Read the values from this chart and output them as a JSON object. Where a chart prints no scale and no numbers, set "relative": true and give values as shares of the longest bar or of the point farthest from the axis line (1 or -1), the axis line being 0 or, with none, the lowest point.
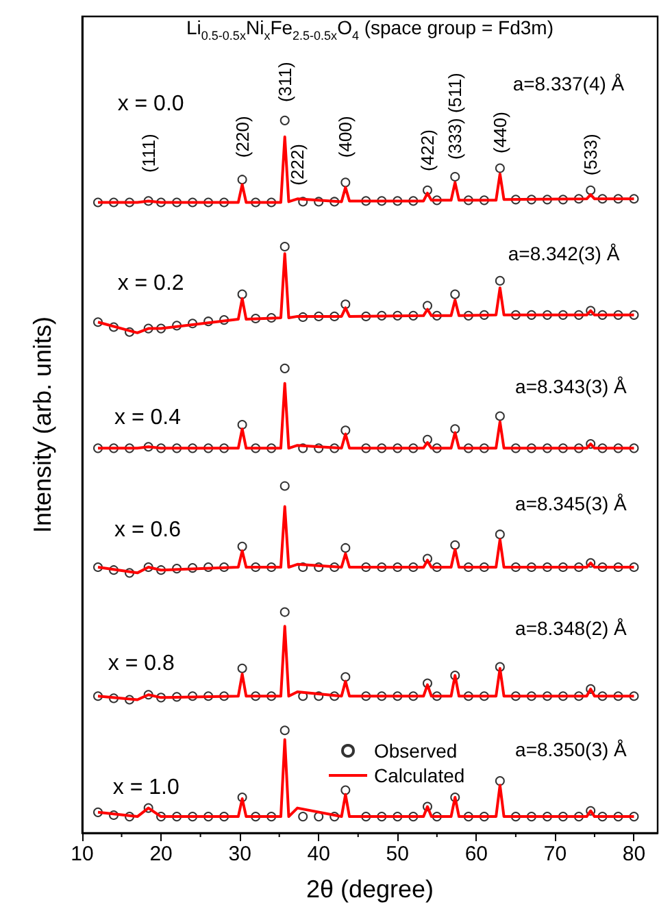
{
  "chart_data": {
    "type": "line",
    "relative": true,
    "title": "Li$_{0.5-0.5x}$Ni$_{x}$Fe$_{2.5-0.5x}$O$_{4}$ (space group = Fd3m)",
    "xlabel": "2θ (degree)",
    "ylabel": "Intensity (arb. units)",
    "xlim": [
      10,
      83
    ],
    "xticks": [
      10,
      20,
      30,
      40,
      50,
      60,
      70,
      80
    ],
    "legend": "bottom",
    "grid": false,
    "series": [
      {
        "type": "scatter",
        "marker": "circle",
        "color": "#000000",
        "x": [
          12,
          14,
          16,
          18.4,
          20,
          22,
          24,
          26,
          28,
          30.3,
          32,
          34,
          35.7,
          38,
          40,
          42,
          43.4,
          46,
          48,
          50,
          52,
          53.8,
          55,
          57.3,
          59,
          61,
          63.0,
          65,
          67,
          69,
          71,
          73,
          74.5,
          76,
          78,
          80
        ],
        "values": [
          0.885,
          0.885,
          0.885,
          0.887,
          0.885,
          0.885,
          0.885,
          0.885,
          0.885,
          0.917,
          0.885,
          0.885,
          1.0,
          0.886,
          0.886,
          0.886,
          0.913,
          0.887,
          0.887,
          0.887,
          0.887,
          0.902,
          0.888,
          0.921,
          0.888,
          0.888,
          0.933,
          0.889,
          0.889,
          0.889,
          0.889,
          0.89,
          0.902,
          0.89,
          0.89,
          0.89
        ]
      },
      {
        "type": "line",
        "marker": "none",
        "color": "#ff0000",
        "x": [
          12,
          17,
          18.4,
          20,
          29.8,
          30.3,
          30.8,
          35.2,
          35.7,
          36.2,
          37.3,
          42.9,
          43.4,
          43.9,
          53.3,
          53.8,
          54.3,
          56.8,
          57.3,
          57.8,
          62.5,
          63.0,
          63.5,
          74.0,
          74.5,
          75.0,
          80
        ],
        "values": [
          0.885,
          0.885,
          0.887,
          0.885,
          0.885,
          0.91,
          0.885,
          0.885,
          0.977,
          0.886,
          0.89,
          0.886,
          0.906,
          0.887,
          0.887,
          0.898,
          0.888,
          0.888,
          0.913,
          0.888,
          0.888,
          0.925,
          0.889,
          0.89,
          0.896,
          0.89,
          0.89
        ]
      },
      {
        "type": "scatter",
        "marker": "circle",
        "color": "#000000",
        "x": [
          12,
          14,
          16,
          18.4,
          20,
          22,
          24,
          26,
          28,
          30.3,
          32,
          34,
          35.7,
          38,
          40,
          42,
          43.4,
          46,
          48,
          50,
          52,
          53.8,
          55,
          57.3,
          59,
          61,
          63.0,
          65,
          67,
          69,
          71,
          73,
          74.5,
          76,
          78,
          80
        ],
        "values": [
          0.717,
          0.71,
          0.703,
          0.708,
          0.708,
          0.712,
          0.715,
          0.718,
          0.72,
          0.756,
          0.722,
          0.723,
          0.823,
          0.724,
          0.725,
          0.725,
          0.742,
          0.725,
          0.726,
          0.726,
          0.726,
          0.74,
          0.726,
          0.756,
          0.726,
          0.727,
          0.775,
          0.727,
          0.727,
          0.727,
          0.727,
          0.727,
          0.733,
          0.727,
          0.727,
          0.727
        ]
      },
      {
        "type": "line",
        "marker": "none",
        "color": "#ff0000",
        "x": [
          12,
          17,
          18.4,
          20,
          29.8,
          30.3,
          30.8,
          35.2,
          35.7,
          36.2,
          37.3,
          42.9,
          43.4,
          43.9,
          53.3,
          53.8,
          54.3,
          56.8,
          57.3,
          57.8,
          62.5,
          63.0,
          63.5,
          74.0,
          74.5,
          75.0,
          80
        ],
        "values": [
          0.717,
          0.702,
          0.708,
          0.708,
          0.721,
          0.75,
          0.721,
          0.723,
          0.813,
          0.723,
          0.725,
          0.725,
          0.737,
          0.725,
          0.726,
          0.735,
          0.726,
          0.726,
          0.748,
          0.726,
          0.727,
          0.765,
          0.727,
          0.727,
          0.733,
          0.727,
          0.727
        ]
      },
      {
        "type": "scatter",
        "marker": "circle",
        "color": "#000000",
        "x": [
          12,
          14,
          16,
          18.4,
          20,
          22,
          24,
          26,
          28,
          30.3,
          32,
          34,
          35.7,
          38,
          40,
          42,
          43.4,
          46,
          48,
          50,
          52,
          53.8,
          55,
          57.3,
          59,
          61,
          63.0,
          65,
          67,
          69,
          71,
          73,
          74.5,
          76,
          78,
          80
        ],
        "values": [
          0.54,
          0.54,
          0.54,
          0.542,
          0.54,
          0.54,
          0.54,
          0.54,
          0.54,
          0.573,
          0.54,
          0.54,
          0.652,
          0.54,
          0.54,
          0.54,
          0.565,
          0.54,
          0.54,
          0.54,
          0.54,
          0.552,
          0.54,
          0.567,
          0.54,
          0.54,
          0.585,
          0.54,
          0.54,
          0.54,
          0.54,
          0.54,
          0.546,
          0.54,
          0.54,
          0.54
        ]
      },
      {
        "type": "line",
        "marker": "none",
        "color": "#ff0000",
        "x": [
          12,
          17,
          18.4,
          20,
          29.8,
          30.3,
          30.8,
          35.2,
          35.7,
          36.2,
          37.3,
          42.9,
          43.4,
          43.9,
          53.3,
          53.8,
          54.3,
          56.8,
          57.3,
          57.8,
          62.5,
          63.0,
          63.5,
          74.0,
          74.5,
          75.0,
          80
        ],
        "values": [
          0.54,
          0.54,
          0.542,
          0.54,
          0.54,
          0.567,
          0.54,
          0.54,
          0.631,
          0.54,
          0.544,
          0.54,
          0.56,
          0.54,
          0.54,
          0.548,
          0.54,
          0.54,
          0.562,
          0.54,
          0.54,
          0.577,
          0.54,
          0.54,
          0.546,
          0.54,
          0.54
        ]
      },
      {
        "type": "scatter",
        "marker": "circle",
        "color": "#000000",
        "x": [
          12,
          14,
          16,
          18.4,
          20,
          22,
          24,
          26,
          28,
          30.3,
          32,
          34,
          35.7,
          38,
          40,
          42,
          43.4,
          46,
          48,
          50,
          52,
          53.8,
          55,
          57.3,
          59,
          61,
          63.0,
          65,
          67,
          69,
          71,
          73,
          74.5,
          76,
          78,
          80
        ],
        "values": [
          0.373,
          0.369,
          0.365,
          0.373,
          0.369,
          0.371,
          0.372,
          0.373,
          0.373,
          0.402,
          0.373,
          0.373,
          0.487,
          0.373,
          0.373,
          0.373,
          0.4,
          0.373,
          0.373,
          0.373,
          0.373,
          0.385,
          0.373,
          0.404,
          0.373,
          0.373,
          0.419,
          0.373,
          0.373,
          0.373,
          0.373,
          0.373,
          0.379,
          0.373,
          0.373,
          0.373
        ]
      },
      {
        "type": "line",
        "marker": "none",
        "color": "#ff0000",
        "x": [
          12,
          17,
          18.4,
          20,
          29.8,
          30.3,
          30.8,
          35.2,
          35.7,
          36.2,
          37.3,
          42.9,
          43.4,
          43.9,
          53.3,
          53.8,
          54.3,
          56.8,
          57.3,
          57.8,
          62.5,
          63.0,
          63.5,
          74.0,
          74.5,
          75.0,
          80
        ],
        "values": [
          0.373,
          0.365,
          0.373,
          0.369,
          0.373,
          0.396,
          0.373,
          0.373,
          0.458,
          0.373,
          0.377,
          0.373,
          0.392,
          0.373,
          0.373,
          0.383,
          0.373,
          0.373,
          0.398,
          0.373,
          0.373,
          0.412,
          0.373,
          0.373,
          0.379,
          0.373,
          0.373
        ]
      },
      {
        "type": "scatter",
        "marker": "circle",
        "color": "#000000",
        "x": [
          12,
          14,
          16,
          18.4,
          20,
          22,
          24,
          26,
          28,
          30.3,
          32,
          34,
          35.7,
          38,
          40,
          42,
          43.4,
          46,
          48,
          50,
          52,
          53.8,
          55,
          57.3,
          59,
          61,
          63.0,
          65,
          67,
          69,
          71,
          73,
          74.5,
          76,
          78,
          80
        ],
        "values": [
          0.192,
          0.189,
          0.187,
          0.194,
          0.19,
          0.191,
          0.192,
          0.192,
          0.192,
          0.231,
          0.192,
          0.192,
          0.31,
          0.192,
          0.192,
          0.192,
          0.219,
          0.192,
          0.192,
          0.192,
          0.192,
          0.21,
          0.192,
          0.221,
          0.192,
          0.192,
          0.233,
          0.192,
          0.192,
          0.192,
          0.192,
          0.192,
          0.202,
          0.192,
          0.192,
          0.192
        ]
      },
      {
        "type": "line",
        "marker": "none",
        "color": "#ff0000",
        "x": [
          12,
          17,
          18.4,
          20,
          29.8,
          30.3,
          30.8,
          35.2,
          35.7,
          36.2,
          37.3,
          42.9,
          43.4,
          43.9,
          53.3,
          53.8,
          54.3,
          56.8,
          57.3,
          57.8,
          62.5,
          63.0,
          63.5,
          74.0,
          74.5,
          75.0,
          80
        ],
        "values": [
          0.192,
          0.187,
          0.194,
          0.19,
          0.192,
          0.223,
          0.192,
          0.192,
          0.29,
          0.192,
          0.198,
          0.192,
          0.213,
          0.192,
          0.192,
          0.208,
          0.192,
          0.192,
          0.221,
          0.192,
          0.192,
          0.231,
          0.192,
          0.192,
          0.202,
          0.192,
          0.192
        ]
      },
      {
        "type": "scatter",
        "name": "Observed",
        "marker": "circle",
        "color": "#000000",
        "x": [
          12,
          14,
          16,
          18.4,
          20,
          22,
          24,
          26,
          28,
          30.3,
          32,
          34,
          35.7,
          38,
          40,
          42,
          43.4,
          46,
          48,
          50,
          52,
          53.8,
          55,
          57.3,
          59,
          61,
          63.0,
          65,
          67,
          69,
          71,
          73,
          74.5,
          76,
          78,
          80
        ],
        "values": [
          0.029,
          0.025,
          0.023,
          0.035,
          0.023,
          0.023,
          0.023,
          0.023,
          0.023,
          0.05,
          0.023,
          0.023,
          0.144,
          0.023,
          0.023,
          0.023,
          0.06,
          0.023,
          0.023,
          0.023,
          0.023,
          0.037,
          0.023,
          0.05,
          0.023,
          0.023,
          0.073,
          0.023,
          0.023,
          0.023,
          0.023,
          0.023,
          0.031,
          0.023,
          0.023,
          0.023
        ]
      },
      {
        "type": "line",
        "name": "Calculated",
        "marker": "none",
        "color": "#ff0000",
        "x": [
          12,
          17,
          18.4,
          20,
          29.8,
          30.3,
          30.8,
          35.2,
          35.7,
          36.2,
          37.3,
          42.9,
          43.4,
          43.9,
          53.3,
          53.8,
          54.3,
          56.8,
          57.3,
          57.8,
          62.5,
          63.0,
          63.5,
          74.0,
          74.5,
          75.0,
          80
        ],
        "values": [
          0.029,
          0.023,
          0.035,
          0.023,
          0.023,
          0.048,
          0.023,
          0.023,
          0.131,
          0.023,
          0.035,
          0.023,
          0.054,
          0.023,
          0.023,
          0.037,
          0.023,
          0.023,
          0.05,
          0.023,
          0.023,
          0.067,
          0.023,
          0.023,
          0.031,
          0.023,
          0.023
        ]
      }
    ],
    "annotations": [
      "x = 0.0",
      "x = 0.2",
      "x = 0.4",
      "x = 0.6",
      "x = 0.8",
      "x = 1.0",
      "a=8.337(4) Å",
      "a=8.342(3) Å",
      "a=8.343(3) Å",
      "a=8.345(3) Å",
      "a=8.348(2) Å",
      "a=8.350(3) Å",
      "(111)",
      "(220)",
      "(311)",
      "(222)",
      "(400)",
      "(422)",
      "(333) (511)",
      "(440)",
      "(533)"
    ]
  }
}
